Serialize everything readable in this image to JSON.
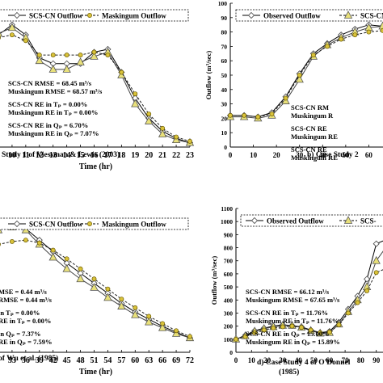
{
  "chart_data": [
    {
      "id": "a",
      "type": "line",
      "x_unit": "hr",
      "xlim": [
        9,
        23
      ],
      "ylim": [
        0,
        100
      ],
      "xticks": [
        10,
        11,
        12,
        13,
        14,
        15,
        16,
        17,
        18,
        19,
        20,
        21,
        22,
        23
      ],
      "xlabel": "Time (hr)",
      "legend": [
        "SCS-CN Outflow",
        "Maskingum Outflow"
      ],
      "stats": [
        "SCS-CN RMSE = 68.45 m³/s",
        "Muskingum RMSE = 68.57 m³/s",
        "SCS-CN RE in Tₚ = 0.00%",
        "Muskingum RE in Tₚ = 0.00%",
        "SCS-CN RE in Qₚ = 6.70%",
        "Muskingum RE in Qₚ = 7.07%"
      ],
      "caption": "Study 1 of Viessman & Lewis (2003)",
      "series": [
        {
          "name": "Observed Outflow",
          "x": [
            9,
            10,
            11,
            12,
            13,
            14,
            15,
            16,
            17,
            18,
            19,
            20,
            21,
            22,
            23
          ],
          "y": [
            78,
            85,
            78,
            62,
            58,
            58,
            58,
            66,
            68,
            52,
            34,
            20,
            11,
            6,
            3
          ]
        },
        {
          "name": "SCS-CN Outflow",
          "x": [
            9,
            10,
            11,
            12,
            13,
            14,
            15,
            16,
            17,
            18,
            19,
            20,
            21,
            22,
            23
          ],
          "y": [
            79,
            83,
            76,
            60,
            54,
            54,
            59,
            63,
            66,
            50,
            30,
            18,
            9,
            5,
            3
          ]
        },
        {
          "name": "Maskingum Outflow",
          "x": [
            9,
            10,
            11,
            12,
            13,
            14,
            15,
            16,
            17,
            18,
            19,
            20,
            21,
            22,
            23
          ],
          "y": [
            76,
            78,
            74,
            64,
            64,
            64,
            64,
            66,
            64,
            52,
            37,
            23,
            13,
            7,
            4
          ]
        }
      ]
    },
    {
      "id": "b",
      "type": "line",
      "x_unit": "hr",
      "xlim": [
        0,
        70
      ],
      "ylim": [
        0,
        100
      ],
      "xticks": [
        0,
        10,
        20,
        30,
        40,
        50,
        60
      ],
      "yticks": [
        0,
        10,
        20,
        30,
        40,
        50,
        60,
        70,
        80,
        90,
        100
      ],
      "ylabel": "Outflow (m³/sec)",
      "legend": [
        "Observed Outflow",
        "SCS-CN"
      ],
      "stats": [
        "SCS-CN RM",
        "Muskingum R",
        "SCS-CN RE",
        "Muskingum RE",
        "SCS-CN RE",
        "Muskingum RE"
      ],
      "caption": "b) Case Study 2",
      "series": [
        {
          "name": "Observed Outflow",
          "x": [
            0,
            6,
            12,
            18,
            24,
            30,
            36,
            42,
            48,
            54,
            60,
            66,
            70
          ],
          "y": [
            22,
            22,
            21,
            24,
            35,
            51,
            65,
            72,
            78,
            82,
            85,
            84,
            83
          ]
        },
        {
          "name": "SCS-CN Outflow",
          "x": [
            0,
            6,
            12,
            18,
            24,
            30,
            36,
            42,
            48,
            54,
            60,
            66,
            70
          ],
          "y": [
            21,
            21,
            20,
            22,
            32,
            47,
            63,
            71,
            76,
            80,
            83,
            84,
            84
          ]
        },
        {
          "name": "Maskingum Outflow",
          "x": [
            0,
            6,
            12,
            18,
            24,
            30,
            36,
            42,
            48,
            54,
            60,
            66,
            70
          ],
          "y": [
            22,
            22,
            21,
            23,
            34,
            50,
            64,
            70,
            75,
            78,
            80,
            81,
            81
          ]
        }
      ]
    },
    {
      "id": "c",
      "type": "line",
      "x_unit": "hr",
      "xlim": [
        30,
        72
      ],
      "ylim": [
        0,
        100
      ],
      "xticks": [
        33,
        36,
        39,
        42,
        45,
        48,
        51,
        54,
        57,
        60,
        63,
        66,
        69,
        72
      ],
      "xlabel": "Time (hr)",
      "legend": [
        "SCS-CN Outflow",
        "Maskingum Outflow"
      ],
      "stats": [
        "MSE = 0.44 m³/s",
        "RMSE = 0.44 m³/s",
        "in Tₚ = 0.00%",
        "RE in Tₚ = 0.00%",
        "in Qₚ = 7.37%",
        "RE in Qₚ = 7.59%"
      ],
      "caption": "of Wu et al. (1985)",
      "series": [
        {
          "name": "Observed Outflow",
          "x": [
            30,
            33,
            36,
            39,
            42,
            45,
            48,
            51,
            54,
            57,
            60,
            63,
            66,
            69,
            72
          ],
          "y": [
            86,
            88,
            86,
            78,
            70,
            62,
            55,
            48,
            41,
            34,
            28,
            23,
            18,
            14,
            10
          ]
        },
        {
          "name": "SCS-CN Outflow",
          "x": [
            30,
            33,
            36,
            39,
            42,
            45,
            48,
            51,
            54,
            57,
            60,
            63,
            66,
            69,
            72
          ],
          "y": [
            85,
            87,
            85,
            75,
            66,
            58,
            51,
            45,
            38,
            32,
            26,
            21,
            17,
            13,
            10
          ]
        },
        {
          "name": "Maskingum Outflow",
          "x": [
            30,
            33,
            36,
            39,
            42,
            45,
            48,
            51,
            54,
            57,
            60,
            63,
            66,
            69,
            72
          ],
          "y": [
            75,
            77,
            78,
            76,
            71,
            65,
            58,
            51,
            44,
            37,
            31,
            25,
            20,
            15,
            11
          ]
        }
      ]
    },
    {
      "id": "d",
      "type": "line",
      "x_unit": "hr",
      "xlim": [
        0,
        100
      ],
      "ylim": [
        0,
        1100
      ],
      "xticks": [
        0,
        10,
        20,
        30,
        40,
        50,
        60,
        70,
        80,
        90
      ],
      "yticks": [
        0,
        100,
        200,
        300,
        400,
        500,
        600,
        700,
        800,
        900,
        1000,
        1100
      ],
      "ylabel": "Outflow (m³/sec)",
      "legend": [
        "Observed Outflow",
        "SCS-"
      ],
      "stats": [
        "SCS-CN RMSE = 66.12 m³/s",
        "Muskingum RMSE = 67.65 m³/s",
        "SCS-CN RE in Tₚ = 11.76%",
        "Muskingum RE in Tₚ = 11.76%",
        "SCS-CN RE in Qₚ = 15.00%",
        "Muskingum RE in Qₚ = 15.89%"
      ],
      "caption": [
        "d) Case Study 4 of O'Donnel",
        "(1985)"
      ],
      "series": [
        {
          "name": "Observed Outflow",
          "x": [
            0,
            6,
            12,
            18,
            24,
            30,
            36,
            42,
            48,
            54,
            60,
            66,
            72,
            78,
            84,
            90,
            96,
            100
          ],
          "y": [
            100,
            130,
            165,
            185,
            200,
            210,
            205,
            195,
            170,
            150,
            160,
            230,
            330,
            430,
            560,
            830,
            860,
            860
          ]
        },
        {
          "name": "SCS-CN Outflow",
          "x": [
            0,
            6,
            12,
            18,
            24,
            30,
            36,
            42,
            48,
            54,
            60,
            66,
            72,
            78,
            84,
            90,
            96,
            100
          ],
          "y": [
            100,
            125,
            160,
            180,
            195,
            205,
            205,
            190,
            165,
            145,
            150,
            215,
            310,
            400,
            500,
            700,
            800,
            820
          ]
        },
        {
          "name": "Maskingum Outflow",
          "x": [
            0,
            6,
            12,
            18,
            24,
            30,
            36,
            42,
            48,
            54,
            60,
            66,
            72,
            78,
            84,
            90,
            96,
            100
          ],
          "y": [
            100,
            120,
            150,
            170,
            185,
            195,
            200,
            190,
            170,
            150,
            155,
            210,
            300,
            380,
            470,
            610,
            640,
            640
          ]
        }
      ]
    }
  ]
}
